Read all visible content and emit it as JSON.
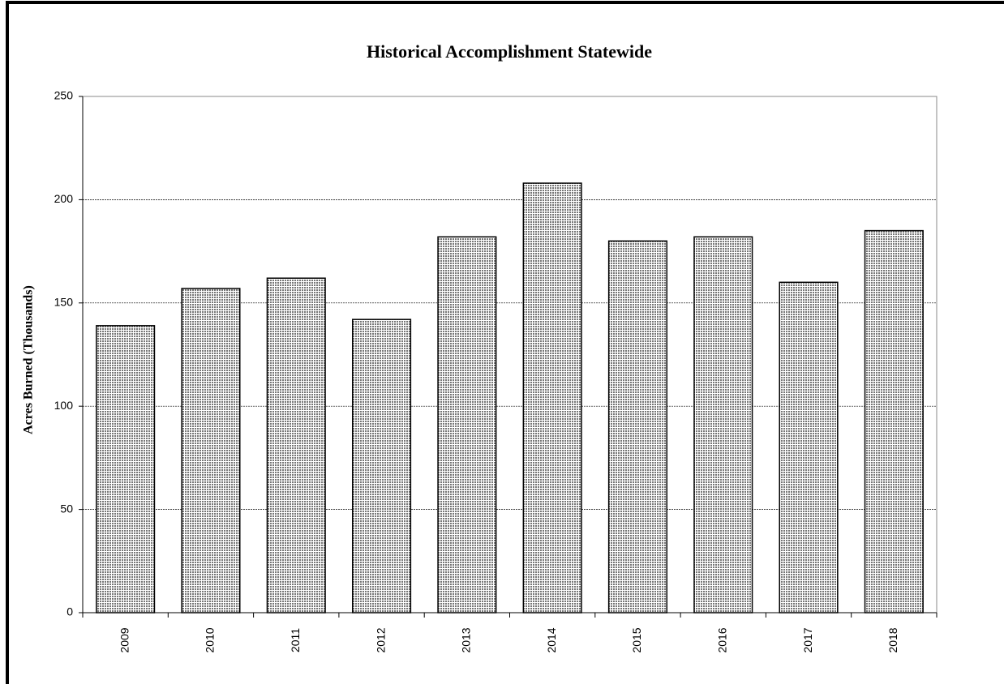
{
  "chart_data": {
    "type": "bar",
    "title": "Historical Accomplishment  Statewide",
    "y_label": "Acres Burned (Thousands)",
    "categories": [
      "2009",
      "2010",
      "2011",
      "2012",
      "2013",
      "2014",
      "2015",
      "2016",
      "2017",
      "2018"
    ],
    "values": [
      139,
      157,
      162,
      142,
      182,
      208,
      180,
      182,
      160,
      185
    ],
    "color": "#c8c8c8",
    "ylim": [
      0,
      250
    ],
    "yticks": [
      0,
      50,
      100,
      150,
      200,
      250
    ],
    "grid": true
  }
}
